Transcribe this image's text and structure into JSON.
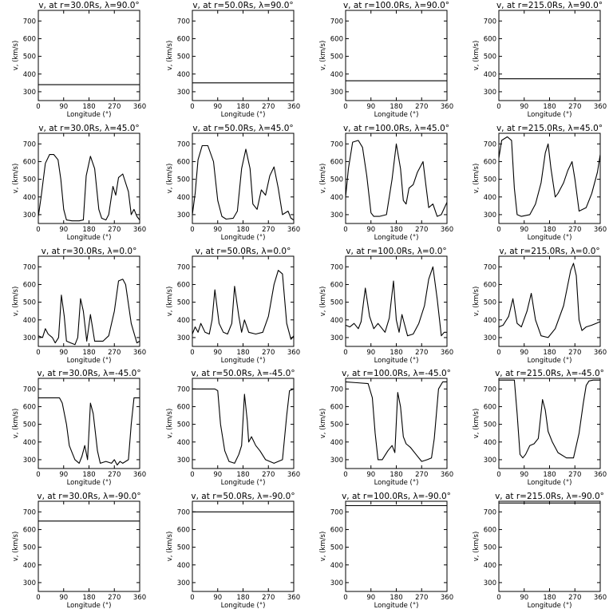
{
  "figure": {
    "background": "#ffffff",
    "line_color": "#000000"
  },
  "chart_data": [
    {
      "type": "line",
      "title": "v, at r=30.0Rs, λ=90.0°",
      "xlabel": "Longitude (°)",
      "ylabel": "v, (km/s)",
      "xlim": [
        0,
        360
      ],
      "ylim": [
        250,
        760
      ],
      "xticks": [
        "0",
        "90",
        "180",
        "270",
        "360"
      ],
      "yticks": [
        "300",
        "400",
        "500",
        "600",
        "700"
      ],
      "x": [
        0,
        360
      ],
      "y": [
        340,
        340
      ]
    },
    {
      "type": "line",
      "title": "v, at r=50.0Rs, λ=90.0°",
      "xlabel": "Longitude (°)",
      "ylabel": "v, (km/s)",
      "xlim": [
        0,
        360
      ],
      "ylim": [
        250,
        760
      ],
      "xticks": [
        "0",
        "90",
        "180",
        "270",
        "360"
      ],
      "yticks": [
        "300",
        "400",
        "500",
        "600",
        "700"
      ],
      "x": [
        0,
        360
      ],
      "y": [
        350,
        350
      ]
    },
    {
      "type": "line",
      "title": "v, at r=100.0Rs, λ=90.0°",
      "xlabel": "Longitude (°)",
      "ylabel": "v, (km/s)",
      "xlim": [
        0,
        360
      ],
      "ylim": [
        250,
        760
      ],
      "xticks": [
        "0",
        "90",
        "180",
        "270",
        "360"
      ],
      "yticks": [
        "300",
        "400",
        "500",
        "600",
        "700"
      ],
      "x": [
        0,
        360
      ],
      "y": [
        362,
        362
      ]
    },
    {
      "type": "line",
      "title": "v, at r=215.0Rs, λ=90.0°",
      "xlabel": "Longitude (°)",
      "ylabel": "v, (km/s)",
      "xlim": [
        0,
        360
      ],
      "ylim": [
        250,
        760
      ],
      "xticks": [
        "0",
        "90",
        "180",
        "270",
        "360"
      ],
      "yticks": [
        "300",
        "400",
        "500",
        "600",
        "700"
      ],
      "x": [
        0,
        360
      ],
      "y": [
        373,
        373
      ]
    },
    {
      "type": "line",
      "title": "v, at r=30.0Rs, λ=45.0°",
      "xlabel": "Longitude (°)",
      "ylabel": "v, (km/s)",
      "xlim": [
        0,
        360
      ],
      "ylim": [
        250,
        760
      ],
      "xticks": [
        "0",
        "90",
        "180",
        "270",
        "360"
      ],
      "yticks": [
        "300",
        "400",
        "500",
        "600",
        "700"
      ],
      "x": [
        0,
        10,
        25,
        40,
        55,
        70,
        80,
        90,
        100,
        120,
        145,
        160,
        170,
        185,
        200,
        215,
        225,
        240,
        250,
        265,
        275,
        285,
        300,
        320,
        330,
        340,
        350,
        360
      ],
      "y": [
        290,
        400,
        590,
        640,
        640,
        610,
        500,
        330,
        270,
        265,
        265,
        270,
        520,
        630,
        560,
        330,
        280,
        270,
        300,
        460,
        410,
        510,
        530,
        430,
        300,
        330,
        290,
        270
      ]
    },
    {
      "type": "line",
      "title": "v, at r=50.0Rs, λ=45.0°",
      "xlabel": "Longitude (°)",
      "ylabel": "v, (km/s)",
      "xlim": [
        0,
        360
      ],
      "ylim": [
        250,
        760
      ],
      "xticks": [
        "0",
        "90",
        "180",
        "270",
        "360"
      ],
      "yticks": [
        "300",
        "400",
        "500",
        "600",
        "700"
      ],
      "x": [
        0,
        10,
        20,
        35,
        55,
        75,
        90,
        105,
        120,
        145,
        160,
        175,
        190,
        205,
        215,
        230,
        245,
        260,
        275,
        290,
        305,
        320,
        340,
        350,
        360
      ],
      "y": [
        300,
        420,
        610,
        690,
        690,
        600,
        380,
        290,
        275,
        280,
        320,
        560,
        670,
        560,
        360,
        330,
        440,
        410,
        520,
        570,
        450,
        300,
        320,
        280,
        270
      ]
    },
    {
      "type": "line",
      "title": "v, at r=100.0Rs, λ=45.0°",
      "xlabel": "Longitude (°)",
      "ylabel": "v, (km/s)",
      "xlim": [
        0,
        360
      ],
      "ylim": [
        250,
        760
      ],
      "xticks": [
        "0",
        "90",
        "180",
        "270",
        "360"
      ],
      "yticks": [
        "300",
        "400",
        "500",
        "600",
        "700"
      ],
      "x": [
        0,
        10,
        25,
        45,
        60,
        75,
        90,
        100,
        120,
        145,
        165,
        180,
        195,
        205,
        215,
        225,
        240,
        255,
        275,
        285,
        295,
        310,
        325,
        340,
        360
      ],
      "y": [
        400,
        560,
        710,
        720,
        680,
        520,
        310,
        290,
        290,
        300,
        500,
        700,
        560,
        380,
        360,
        450,
        470,
        540,
        600,
        470,
        340,
        360,
        290,
        300,
        370
      ]
    },
    {
      "type": "line",
      "title": "v, at r=215.0Rs, λ=45.0°",
      "xlabel": "Longitude (°)",
      "ylabel": "v, (km/s)",
      "xlim": [
        0,
        360
      ],
      "ylim": [
        250,
        760
      ],
      "xticks": [
        "0",
        "90",
        "180",
        "270",
        "360"
      ],
      "yticks": [
        "300",
        "400",
        "500",
        "600",
        "700"
      ],
      "x": [
        0,
        10,
        30,
        45,
        55,
        65,
        80,
        110,
        130,
        150,
        165,
        175,
        185,
        200,
        210,
        230,
        245,
        260,
        270,
        285,
        310,
        330,
        350,
        360
      ],
      "y": [
        620,
        720,
        740,
        720,
        450,
        300,
        290,
        300,
        360,
        480,
        650,
        700,
        560,
        400,
        420,
        480,
        550,
        600,
        500,
        320,
        340,
        420,
        540,
        640
      ]
    },
    {
      "type": "line",
      "title": "v, at r=30.0Rs, λ=0.0°",
      "xlabel": "Longitude (°)",
      "ylabel": "v, (km/s)",
      "xlim": [
        0,
        360
      ],
      "ylim": [
        250,
        760
      ],
      "xticks": [
        "0",
        "90",
        "180",
        "270",
        "360"
      ],
      "yticks": [
        "300",
        "400",
        "500",
        "600",
        "700"
      ],
      "x": [
        0,
        15,
        25,
        35,
        50,
        60,
        72,
        82,
        92,
        100,
        115,
        130,
        140,
        150,
        160,
        172,
        185,
        200,
        230,
        250,
        270,
        285,
        300,
        310,
        330,
        350,
        360
      ],
      "y": [
        310,
        300,
        350,
        320,
        300,
        270,
        300,
        540,
        420,
        280,
        270,
        260,
        300,
        520,
        450,
        280,
        430,
        280,
        280,
        310,
        450,
        620,
        630,
        600,
        380,
        270,
        280
      ]
    },
    {
      "type": "line",
      "title": "v, at r=50.0Rs, λ=0.0°",
      "xlabel": "Longitude (°)",
      "ylabel": "v, (km/s)",
      "xlim": [
        0,
        360
      ],
      "ylim": [
        250,
        760
      ],
      "xticks": [
        "0",
        "90",
        "180",
        "270",
        "360"
      ],
      "yticks": [
        "300",
        "400",
        "500",
        "600",
        "700"
      ],
      "x": [
        0,
        10,
        20,
        30,
        45,
        60,
        70,
        80,
        95,
        110,
        125,
        140,
        150,
        165,
        175,
        185,
        200,
        225,
        250,
        270,
        290,
        305,
        320,
        335,
        350,
        360
      ],
      "y": [
        320,
        360,
        330,
        380,
        330,
        320,
        400,
        570,
        380,
        330,
        320,
        380,
        590,
        420,
        330,
        400,
        330,
        320,
        330,
        420,
        600,
        680,
        660,
        380,
        290,
        310
      ]
    },
    {
      "type": "line",
      "title": "v, at r=100.0Rs, λ=0.0°",
      "xlabel": "Longitude (°)",
      "ylabel": "v, (km/s)",
      "xlim": [
        0,
        360
      ],
      "ylim": [
        250,
        760
      ],
      "xticks": [
        "0",
        "90",
        "180",
        "270",
        "360"
      ],
      "yticks": [
        "300",
        "400",
        "500",
        "600",
        "700"
      ],
      "x": [
        0,
        15,
        30,
        45,
        55,
        70,
        85,
        100,
        115,
        140,
        155,
        170,
        180,
        190,
        200,
        220,
        240,
        260,
        280,
        295,
        310,
        325,
        340,
        350,
        360
      ],
      "y": [
        370,
        360,
        380,
        350,
        390,
        580,
        420,
        350,
        380,
        330,
        410,
        620,
        400,
        330,
        430,
        310,
        320,
        380,
        480,
        630,
        700,
        520,
        310,
        330,
        330
      ]
    },
    {
      "type": "line",
      "title": "v, at r=215.0Rs, λ=0.0°",
      "xlabel": "Longitude (°)",
      "ylabel": "v, (km/s)",
      "xlim": [
        0,
        360
      ],
      "ylim": [
        250,
        760
      ],
      "xticks": [
        "0",
        "90",
        "180",
        "270",
        "360"
      ],
      "yticks": [
        "300",
        "400",
        "500",
        "600",
        "700"
      ],
      "x": [
        0,
        15,
        35,
        50,
        65,
        80,
        100,
        115,
        130,
        150,
        175,
        200,
        230,
        255,
        265,
        275,
        285,
        295,
        310,
        330,
        345,
        360
      ],
      "y": [
        360,
        370,
        420,
        520,
        380,
        360,
        450,
        550,
        400,
        310,
        300,
        350,
        480,
        680,
        720,
        650,
        400,
        340,
        360,
        370,
        380,
        390
      ]
    },
    {
      "type": "line",
      "title": "v, at r=30.0Rs, λ=-45.0°",
      "xlabel": "Longitude (°)",
      "ylabel": "v, (km/s)",
      "xlim": [
        0,
        360
      ],
      "ylim": [
        250,
        760
      ],
      "xticks": [
        "0",
        "90",
        "180",
        "270",
        "360"
      ],
      "yticks": [
        "300",
        "400",
        "500",
        "600",
        "700"
      ],
      "x": [
        0,
        40,
        75,
        85,
        100,
        110,
        120,
        130,
        145,
        155,
        165,
        175,
        185,
        195,
        210,
        220,
        240,
        260,
        270,
        280,
        290,
        300,
        320,
        330,
        340,
        360
      ],
      "y": [
        650,
        650,
        650,
        620,
        500,
        380,
        340,
        300,
        280,
        320,
        380,
        300,
        620,
        560,
        350,
        280,
        290,
        280,
        300,
        270,
        290,
        280,
        300,
        500,
        650,
        650
      ]
    },
    {
      "type": "line",
      "title": "v, at r=50.0Rs, λ=-45.0°",
      "xlabel": "Longitude (°)",
      "ylabel": "v, (km/s)",
      "xlim": [
        0,
        360
      ],
      "ylim": [
        250,
        760
      ],
      "xticks": [
        "0",
        "90",
        "180",
        "270",
        "360"
      ],
      "yticks": [
        "300",
        "400",
        "500",
        "600",
        "700"
      ],
      "x": [
        0,
        40,
        80,
        90,
        100,
        115,
        130,
        150,
        165,
        175,
        185,
        195,
        200,
        210,
        225,
        240,
        260,
        275,
        290,
        305,
        320,
        335,
        345,
        360
      ],
      "y": [
        700,
        700,
        700,
        690,
        500,
        350,
        290,
        280,
        330,
        380,
        670,
        520,
        400,
        430,
        380,
        350,
        300,
        290,
        280,
        290,
        300,
        550,
        690,
        700
      ]
    },
    {
      "type": "line",
      "title": "v, at r=100.0Rs, λ=-45.0°",
      "xlabel": "Longitude (°)",
      "ylabel": "v, (km/s)",
      "xlim": [
        0,
        360
      ],
      "ylim": [
        250,
        760
      ],
      "xticks": [
        "0",
        "90",
        "180",
        "270",
        "360"
      ],
      "yticks": [
        "300",
        "400",
        "500",
        "600",
        "700"
      ],
      "x": [
        0,
        40,
        80,
        95,
        105,
        115,
        130,
        150,
        165,
        175,
        185,
        195,
        205,
        215,
        230,
        250,
        270,
        290,
        305,
        315,
        330,
        345,
        360
      ],
      "y": [
        740,
        735,
        730,
        650,
        450,
        300,
        300,
        350,
        380,
        340,
        680,
        600,
        430,
        390,
        370,
        330,
        290,
        300,
        310,
        420,
        700,
        740,
        740
      ]
    },
    {
      "type": "line",
      "title": "v, at r=215.0Rs, λ=-45.0°",
      "xlabel": "Longitude (°)",
      "ylabel": "v, (km/s)",
      "xlim": [
        0,
        360
      ],
      "ylim": [
        250,
        760
      ],
      "xticks": [
        "0",
        "90",
        "180",
        "270",
        "360"
      ],
      "yticks": [
        "300",
        "400",
        "500",
        "600",
        "700"
      ],
      "x": [
        0,
        30,
        55,
        65,
        75,
        85,
        95,
        110,
        125,
        140,
        155,
        165,
        175,
        190,
        210,
        240,
        265,
        285,
        300,
        310,
        320,
        335,
        360
      ],
      "y": [
        750,
        750,
        750,
        560,
        330,
        310,
        330,
        380,
        390,
        420,
        640,
        580,
        460,
        400,
        340,
        310,
        310,
        450,
        620,
        720,
        745,
        750,
        750
      ]
    },
    {
      "type": "line",
      "title": "v, at r=30.0Rs, λ=-90.0°",
      "xlabel": "Longitude (°)",
      "ylabel": "v, (km/s)",
      "xlim": [
        0,
        360
      ],
      "ylim": [
        250,
        760
      ],
      "xticks": [
        "0",
        "90",
        "180",
        "270",
        "360"
      ],
      "yticks": [
        "300",
        "400",
        "500",
        "600",
        "700"
      ],
      "x": [
        0,
        360
      ],
      "y": [
        648,
        648
      ]
    },
    {
      "type": "line",
      "title": "v, at r=50.0Rs, λ=-90.0°",
      "xlabel": "Longitude (°)",
      "ylabel": "v, (km/s)",
      "xlim": [
        0,
        360
      ],
      "ylim": [
        250,
        760
      ],
      "xticks": [
        "0",
        "90",
        "180",
        "270",
        "360"
      ],
      "yticks": [
        "300",
        "400",
        "500",
        "600",
        "700"
      ],
      "x": [
        0,
        360
      ],
      "y": [
        700,
        700
      ]
    },
    {
      "type": "line",
      "title": "v, at r=100.0Rs, λ=-90.0°",
      "xlabel": "Longitude (°)",
      "ylabel": "v, (km/s)",
      "xlim": [
        0,
        360
      ],
      "ylim": [
        250,
        760
      ],
      "xticks": [
        "0",
        "90",
        "180",
        "270",
        "360"
      ],
      "yticks": [
        "300",
        "400",
        "500",
        "600",
        "700"
      ],
      "x": [
        0,
        360
      ],
      "y": [
        735,
        735
      ]
    },
    {
      "type": "line",
      "title": "v, at r=215.0Rs, λ=-90.0°",
      "xlabel": "Longitude (°)",
      "ylabel": "v, (km/s)",
      "xlim": [
        0,
        360
      ],
      "ylim": [
        250,
        760
      ],
      "xticks": [
        "0",
        "90",
        "180",
        "270",
        "360"
      ],
      "yticks": [
        "300",
        "400",
        "500",
        "600",
        "700"
      ],
      "x": [
        0,
        360
      ],
      "y": [
        750,
        750
      ]
    }
  ]
}
